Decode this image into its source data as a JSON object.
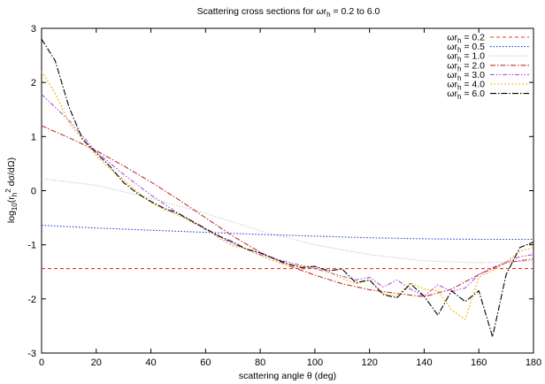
{
  "chart_data": {
    "type": "line",
    "title": "Scattering cross sections for ωr_h = 0.2 to 6.0",
    "xlabel": "scattering angle θ (deg)",
    "ylabel": "log10(r_h^2 dσ/dΩ)",
    "xlim": [
      0,
      180
    ],
    "ylim": [
      -3,
      3
    ],
    "xticks": [
      0,
      20,
      40,
      60,
      80,
      100,
      120,
      140,
      160,
      180
    ],
    "yticks": [
      -3,
      -2,
      -1,
      0,
      1,
      2,
      3
    ],
    "grid": false,
    "legend_position": "top-right",
    "series": [
      {
        "name": "ωr_h = 0.2",
        "color": "#e8352a",
        "dash": "4,3",
        "points": [
          [
            0,
            -1.44
          ],
          [
            60,
            -1.44
          ],
          [
            120,
            -1.44
          ],
          [
            180,
            -1.44
          ]
        ]
      },
      {
        "name": "ωr_h = 0.5",
        "color": "#1c3fd6",
        "dash": "1.5,2",
        "points": [
          [
            0,
            -0.64
          ],
          [
            20,
            -0.69
          ],
          [
            40,
            -0.73
          ],
          [
            60,
            -0.77
          ],
          [
            80,
            -0.81
          ],
          [
            100,
            -0.84
          ],
          [
            120,
            -0.87
          ],
          [
            140,
            -0.89
          ],
          [
            160,
            -0.9
          ],
          [
            180,
            -0.9
          ]
        ]
      },
      {
        "name": "ωr_h = 1.0",
        "color": "#b5b5b5",
        "dash": "1,2",
        "points": [
          [
            0,
            0.22
          ],
          [
            20,
            0.1
          ],
          [
            40,
            -0.14
          ],
          [
            60,
            -0.42
          ],
          [
            80,
            -0.74
          ],
          [
            100,
            -1.0
          ],
          [
            120,
            -1.18
          ],
          [
            140,
            -1.3
          ],
          [
            160,
            -1.33
          ],
          [
            180,
            -1.3
          ]
        ]
      },
      {
        "name": "ωr_h = 2.0",
        "color": "#c43030",
        "dash": "6,2,1.5,2",
        "points": [
          [
            0,
            1.2
          ],
          [
            10,
            0.98
          ],
          [
            20,
            0.74
          ],
          [
            30,
            0.46
          ],
          [
            40,
            0.16
          ],
          [
            50,
            -0.16
          ],
          [
            60,
            -0.5
          ],
          [
            70,
            -0.84
          ],
          [
            80,
            -1.14
          ],
          [
            90,
            -1.38
          ],
          [
            100,
            -1.56
          ],
          [
            110,
            -1.72
          ],
          [
            120,
            -1.83
          ],
          [
            130,
            -1.9
          ],
          [
            140,
            -1.96
          ],
          [
            150,
            -1.82
          ],
          [
            160,
            -1.55
          ],
          [
            170,
            -1.33
          ],
          [
            180,
            -1.26
          ]
        ]
      },
      {
        "name": "ωr_h = 3.0",
        "color": "#b34be0",
        "dash": "5,2,1.5,2,1.5,2",
        "points": [
          [
            0,
            1.78
          ],
          [
            10,
            1.3
          ],
          [
            20,
            0.72
          ],
          [
            30,
            0.3
          ],
          [
            40,
            -0.08
          ],
          [
            50,
            -0.42
          ],
          [
            60,
            -0.72
          ],
          [
            70,
            -0.98
          ],
          [
            80,
            -1.18
          ],
          [
            90,
            -1.32
          ],
          [
            100,
            -1.44
          ],
          [
            110,
            -1.58
          ],
          [
            115,
            -1.65
          ],
          [
            120,
            -1.6
          ],
          [
            125,
            -1.78
          ],
          [
            130,
            -1.65
          ],
          [
            135,
            -1.82
          ],
          [
            140,
            -1.95
          ],
          [
            145,
            -1.74
          ],
          [
            150,
            -1.86
          ],
          [
            155,
            -1.8
          ],
          [
            160,
            -1.55
          ],
          [
            165,
            -1.42
          ],
          [
            170,
            -1.32
          ],
          [
            175,
            -1.22
          ],
          [
            180,
            -1.18
          ]
        ]
      },
      {
        "name": "ωr_h = 4.0",
        "color": "#f0b400",
        "dash": "2,2",
        "points": [
          [
            0,
            2.2
          ],
          [
            5,
            1.8
          ],
          [
            10,
            1.25
          ],
          [
            15,
            0.95
          ],
          [
            20,
            0.65
          ],
          [
            25,
            0.4
          ],
          [
            30,
            0.2
          ],
          [
            35,
            -0.02
          ],
          [
            40,
            -0.22
          ],
          [
            45,
            -0.35
          ],
          [
            50,
            -0.45
          ],
          [
            55,
            -0.58
          ],
          [
            60,
            -0.7
          ],
          [
            65,
            -0.88
          ],
          [
            70,
            -1.02
          ],
          [
            75,
            -1.08
          ],
          [
            80,
            -1.2
          ],
          [
            85,
            -1.3
          ],
          [
            90,
            -1.38
          ],
          [
            95,
            -1.4
          ],
          [
            100,
            -1.4
          ],
          [
            105,
            -1.5
          ],
          [
            110,
            -1.62
          ],
          [
            115,
            -1.72
          ],
          [
            120,
            -1.65
          ],
          [
            125,
            -1.9
          ],
          [
            130,
            -1.95
          ],
          [
            135,
            -1.7
          ],
          [
            140,
            -1.82
          ],
          [
            145,
            -1.85
          ],
          [
            150,
            -2.2
          ],
          [
            155,
            -2.38
          ],
          [
            160,
            -1.6
          ],
          [
            165,
            -1.48
          ],
          [
            170,
            -1.32
          ],
          [
            175,
            -1.12
          ],
          [
            180,
            -1.05
          ]
        ]
      },
      {
        "name": "ωr_h = 6.0",
        "color": "#000000",
        "dash": "7,2,1.5,2",
        "points": [
          [
            0,
            2.8
          ],
          [
            5,
            2.4
          ],
          [
            10,
            1.55
          ],
          [
            15,
            0.95
          ],
          [
            20,
            0.7
          ],
          [
            25,
            0.45
          ],
          [
            30,
            0.15
          ],
          [
            35,
            -0.05
          ],
          [
            40,
            -0.2
          ],
          [
            45,
            -0.33
          ],
          [
            50,
            -0.42
          ],
          [
            55,
            -0.56
          ],
          [
            60,
            -0.7
          ],
          [
            65,
            -0.84
          ],
          [
            70,
            -0.95
          ],
          [
            75,
            -1.08
          ],
          [
            80,
            -1.15
          ],
          [
            85,
            -1.25
          ],
          [
            90,
            -1.35
          ],
          [
            95,
            -1.42
          ],
          [
            100,
            -1.4
          ],
          [
            105,
            -1.48
          ],
          [
            110,
            -1.45
          ],
          [
            115,
            -1.7
          ],
          [
            120,
            -1.65
          ],
          [
            125,
            -1.92
          ],
          [
            130,
            -1.98
          ],
          [
            135,
            -1.72
          ],
          [
            140,
            -1.95
          ],
          [
            145,
            -2.3
          ],
          [
            150,
            -1.85
          ],
          [
            155,
            -2.05
          ],
          [
            160,
            -1.85
          ],
          [
            165,
            -2.7
          ],
          [
            170,
            -1.55
          ],
          [
            175,
            -1.05
          ],
          [
            180,
            -0.95
          ]
        ]
      }
    ]
  }
}
